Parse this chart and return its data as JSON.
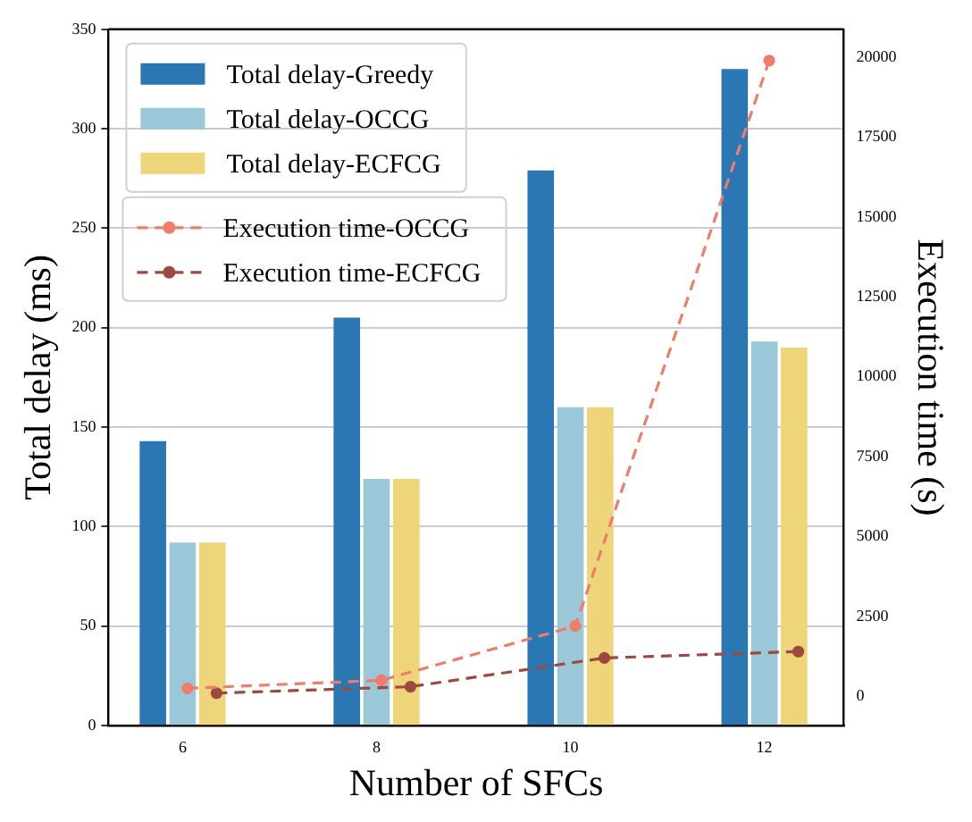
{
  "chart_data": {
    "type": "bar",
    "xlabel": "Number of SFCs",
    "ylabel": "Total delay (ms)",
    "y2label": "Execution time (s)",
    "x": [
      6,
      8,
      10,
      12
    ],
    "xlim": [
      5.235,
      12.82
    ],
    "xticks": [
      6,
      8,
      10,
      12
    ],
    "ylim": [
      0,
      350
    ],
    "yticks": [
      0,
      50,
      100,
      150,
      200,
      250,
      300,
      350
    ],
    "y2lim": [
      -914,
      20877
    ],
    "y2ticks": [
      0,
      2500,
      5000,
      7500,
      10000,
      12500,
      15000,
      17500,
      20000
    ],
    "grid": "y",
    "legend": "top left",
    "series": [
      {
        "name": "Total delay-Greedy",
        "color": "#2a77b4",
        "values": [
          143,
          205,
          279,
          330
        ]
      },
      {
        "name": "Total delay-OCCG",
        "color": "#9ac8d8",
        "values": [
          92,
          124,
          160,
          193
        ]
      },
      {
        "name": "Total delay-ECFCG",
        "color": "#efd57a",
        "values": [
          92,
          124,
          160,
          190
        ]
      },
      {
        "name": "Execution time-OCCG",
        "type": "line",
        "axis": "y2",
        "color": "#f07c6c",
        "marker": "circle",
        "line_style": "dashed",
        "x": [
          6.05,
          8.05,
          10.05,
          12.05
        ],
        "values": [
          250,
          500,
          2200,
          19900
        ]
      },
      {
        "name": "Execution time-ECFCG",
        "type": "line",
        "axis": "y2",
        "color": "#9c4a40",
        "marker": "circle",
        "line_style": "dashed",
        "x": [
          6.35,
          8.35,
          10.35,
          12.35
        ],
        "values": [
          100,
          300,
          1200,
          1400
        ]
      }
    ]
  }
}
